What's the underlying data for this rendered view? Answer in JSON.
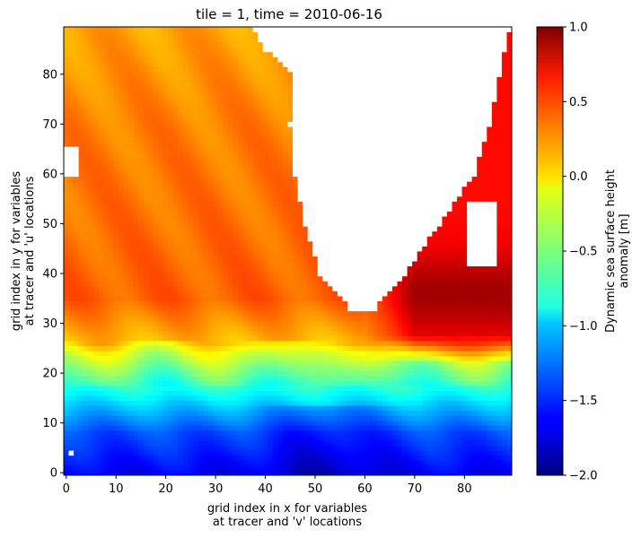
{
  "chart_data": {
    "type": "heatmap",
    "title": "tile = 1, time = 2010-06-16",
    "xlabel_lines": [
      "grid index in x for variables",
      "at tracer and 'v' locations"
    ],
    "ylabel_lines": [
      "grid index in y for variables",
      "at tracer and 'u' locations"
    ],
    "xlim": [
      -0.5,
      89.5
    ],
    "ylim": [
      -0.5,
      89.5
    ],
    "x_ticks": [
      0,
      10,
      20,
      30,
      40,
      50,
      60,
      70,
      80
    ],
    "x_tick_labels": [
      "0",
      "10",
      "20",
      "30",
      "40",
      "50",
      "60",
      "70",
      "80"
    ],
    "y_ticks": [
      0,
      10,
      20,
      30,
      40,
      50,
      60,
      70,
      80
    ],
    "y_tick_labels": [
      "0",
      "10",
      "20",
      "30",
      "40",
      "50",
      "60",
      "70",
      "80"
    ],
    "grid_size": [
      90,
      90
    ],
    "colormap": "jet",
    "colorbar": {
      "label_lines": [
        "Dynamic sea surface height",
        "anomaly [m]"
      ],
      "vmin": -2.0,
      "vmax": 1.0,
      "ticks": [
        1.0,
        0.5,
        0.0,
        -0.5,
        -1.0,
        -1.5,
        -2.0
      ],
      "tick_labels": [
        "1.0",
        "0.5",
        "0.0",
        "−0.5",
        "−1.0",
        "−1.5",
        "−2.0"
      ]
    },
    "land_mask_color": "#ffffff",
    "field_description": {
      "land_africa_left_edge_by_row": [
        [
          33,
          57
        ],
        [
          40,
          51
        ],
        [
          50,
          48
        ],
        [
          60,
          46
        ],
        [
          70,
          45
        ],
        [
          80,
          46
        ],
        [
          85,
          40
        ],
        [
          89,
          38
        ]
      ],
      "land_right_edge_by_row": [
        [
          33,
          62
        ],
        [
          40,
          68
        ],
        [
          50,
          75
        ],
        [
          60,
          82
        ],
        [
          70,
          85
        ],
        [
          80,
          87
        ],
        [
          89,
          89
        ]
      ],
      "band_values_by_row": [
        [
          0,
          -1.65
        ],
        [
          8,
          -1.4
        ],
        [
          14,
          -1.0
        ],
        [
          20,
          -0.55
        ],
        [
          24,
          -0.25
        ],
        [
          27,
          0.1
        ],
        [
          35,
          0.35
        ],
        [
          50,
          0.3
        ],
        [
          70,
          0.25
        ],
        [
          89,
          0.15
        ]
      ],
      "southeast_max_anomaly": 0.9
    }
  }
}
